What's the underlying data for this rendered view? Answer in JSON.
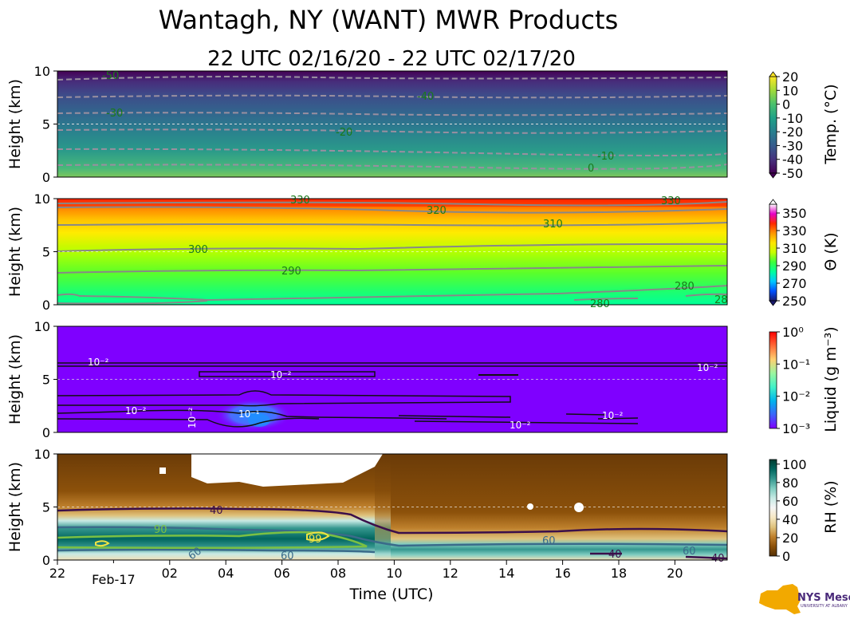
{
  "title": "Wantagh, NY (WANT) MWR Products",
  "subtitle": "22 UTC 02/16/20 - 22 UTC 02/17/20",
  "chart_data": [
    {
      "type": "heatmap",
      "name": "temperature",
      "ylabel": "Height (km)",
      "ylim": [
        0,
        10
      ],
      "yticks": [
        "0",
        "5",
        "10"
      ],
      "colorbar_label": "Temp. (°C)",
      "colorbar_ticks": [
        "20",
        "10",
        "0",
        "-10",
        "-20",
        "-30",
        "-40",
        "-50"
      ],
      "colorbar_range": [
        -50,
        20
      ],
      "colors": [
        "#440154",
        "#46327e",
        "#365c8d",
        "#277f8e",
        "#1fa187",
        "#4ac16d",
        "#a0da39",
        "#fde725"
      ],
      "contour_labels": [
        "-50",
        "-40",
        "-30",
        "-20",
        "-10",
        "0"
      ]
    },
    {
      "type": "heatmap",
      "name": "theta",
      "ylabel": "Height (km)",
      "ylim": [
        0,
        10
      ],
      "yticks": [
        "0",
        "5",
        "10"
      ],
      "colorbar_label": "Θ (K)",
      "colorbar_ticks": [
        "350",
        "330",
        "310",
        "290",
        "270",
        "250"
      ],
      "colorbar_range": [
        250,
        360
      ],
      "colors": [
        "#1a1a6e",
        "#0050ff",
        "#00c8ff",
        "#00ff9c",
        "#3cff3c",
        "#c8ff00",
        "#ffe600",
        "#ff9600",
        "#ff2800",
        "#e600c8",
        "#ffffff"
      ],
      "contour_labels": [
        "330",
        "320",
        "310",
        "300",
        "290",
        "280",
        "280",
        "28",
        "330"
      ]
    },
    {
      "type": "heatmap",
      "name": "liquid",
      "ylabel": "Height (km)",
      "ylim": [
        0,
        10
      ],
      "yticks": [
        "0",
        "5",
        "10"
      ],
      "colorbar_label": "Liquid (g m⁻³)",
      "colorbar_ticks": [
        "10⁰",
        "10⁻¹",
        "10⁻²",
        "10⁻³"
      ],
      "colorbar_range": [
        0.001,
        1
      ],
      "colors": [
        "#7f00ff",
        "#3c64fa",
        "#00b4ec",
        "#42f2c8",
        "#9cf6a0",
        "#ffd070",
        "#ff6a38",
        "#ff0000"
      ],
      "contour_labels": [
        "10⁻²",
        "10⁻²",
        "10⁻²",
        "10⁻²",
        "10⁻¹",
        "10⁻²",
        "10⁻²",
        "10⁻²"
      ]
    },
    {
      "type": "heatmap",
      "name": "relative_humidity",
      "ylabel": "Height (km)",
      "ylim": [
        0,
        10
      ],
      "yticks": [
        "0",
        "5",
        "10"
      ],
      "xlabel": "Time (UTC)",
      "xticks": [
        "22",
        "02",
        "04",
        "06",
        "08",
        "10",
        "12",
        "14",
        "16",
        "18",
        "20"
      ],
      "xticks_minor": [
        "Feb-17"
      ],
      "colorbar_label": "RH (%)",
      "colorbar_ticks": [
        "100",
        "80",
        "60",
        "40",
        "20",
        "0"
      ],
      "colorbar_range": [
        0,
        105
      ],
      "colors": [
        "#543005",
        "#8c510a",
        "#bf812d",
        "#dfc27d",
        "#f6e8c3",
        "#f5f5f5",
        "#c7eae5",
        "#80cdc1",
        "#35978f",
        "#01665e",
        "#003c30"
      ],
      "contour_labels": [
        "40",
        "90",
        "99",
        "60",
        "60",
        "60",
        "40",
        "60",
        "40"
      ]
    }
  ],
  "logo": {
    "text": "NYS Mesonet",
    "subtext": "UNIVERSITY AT ALBANY"
  }
}
